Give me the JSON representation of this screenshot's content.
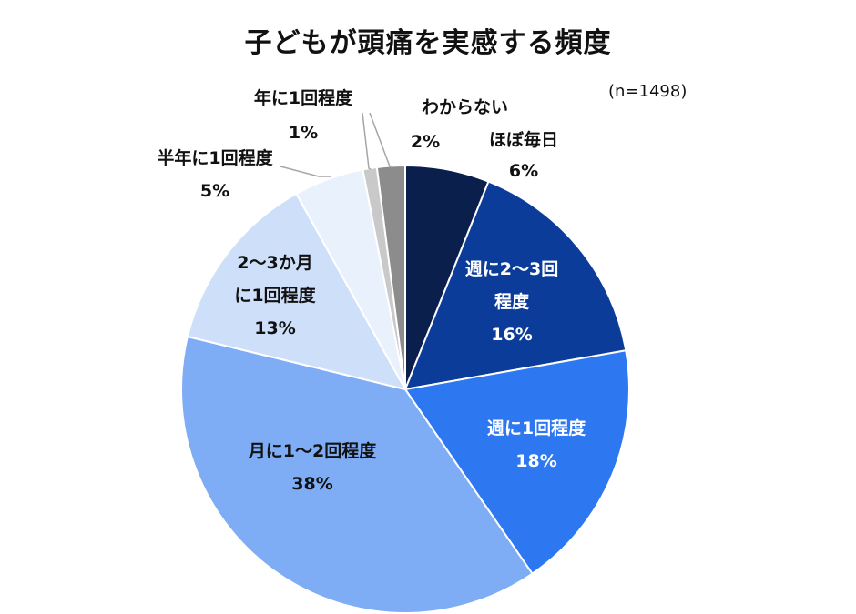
{
  "chart_data": {
    "type": "pie",
    "title": "子どもが頭痛を実感する頻度",
    "note": "(n=1498)",
    "slices": [
      {
        "label": [
          "ほぼ毎日"
        ],
        "value": 6,
        "value_label": "6%",
        "color": "#0b1f4d"
      },
      {
        "label": [
          "週に2～3回",
          "程度"
        ],
        "value": 16,
        "value_label": "16%",
        "color": "#0c3c99"
      },
      {
        "label": [
          "週に1回程度"
        ],
        "value": 18,
        "value_label": "18%",
        "color": "#2d77f0"
      },
      {
        "label": [
          "月に1～2回程度"
        ],
        "value": 38,
        "value_label": "38%",
        "color": "#7fadf5"
      },
      {
        "label": [
          "2～3か月",
          "に1回程度"
        ],
        "value": 13,
        "value_label": "13%",
        "color": "#cddff9"
      },
      {
        "label": [
          "半年に1回程度"
        ],
        "value": 5,
        "value_label": "5%",
        "color": "#e9f1fd"
      },
      {
        "label": [
          "年に1回程度"
        ],
        "value": 1,
        "value_label": "1%",
        "color": "#c9c9c9"
      },
      {
        "label": [
          "わからない"
        ],
        "value": 2,
        "value_label": "2%",
        "color": "#8c8c8c"
      }
    ]
  }
}
